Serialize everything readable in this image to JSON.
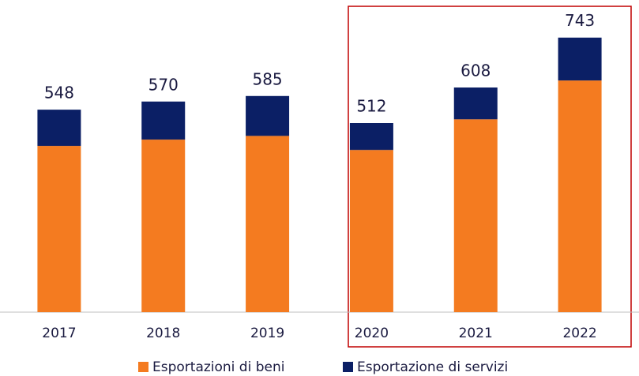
{
  "chart_data": {
    "type": "bar",
    "stacked": true,
    "categories": [
      "2017",
      "2018",
      "2019",
      "2020",
      "2021",
      "2022"
    ],
    "series": [
      {
        "name": "Esportazioni di beni",
        "color": "#f47b20",
        "values": [
          450,
          467,
          477,
          439,
          522,
          627
        ]
      },
      {
        "name": "Esportazione di servizi",
        "color": "#0b1f65",
        "values": [
          98,
          103,
          108,
          73,
          86,
          116
        ]
      }
    ],
    "totals": [
      548,
      570,
      585,
      512,
      608,
      743
    ],
    "ylim": [
      0,
      800
    ]
  }
}
